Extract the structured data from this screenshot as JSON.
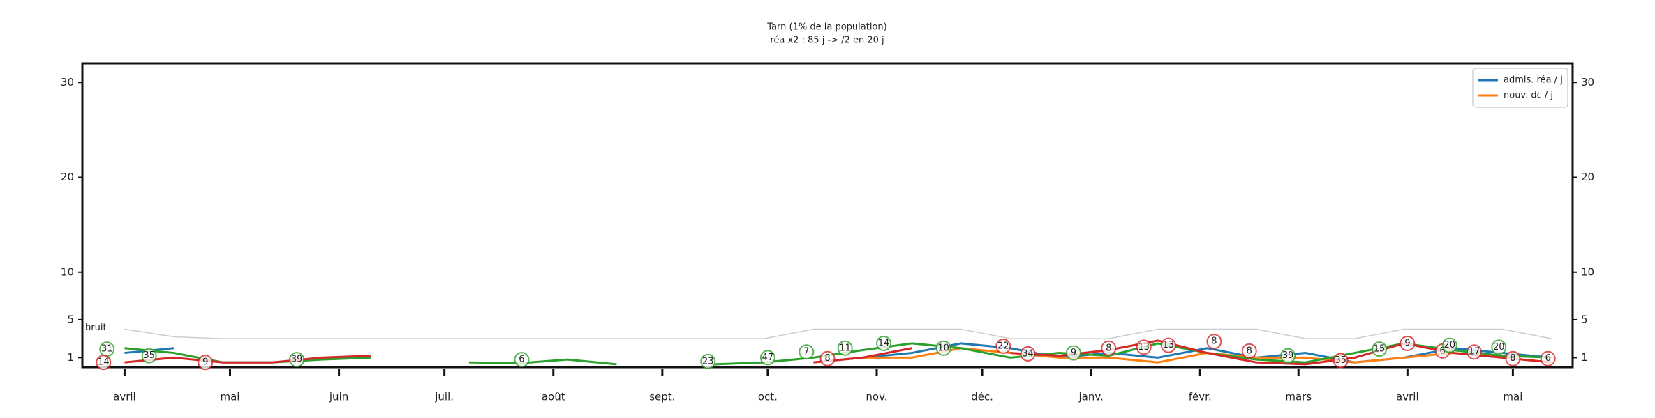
{
  "chart_data": {
    "type": "line",
    "title": "Tarn (1% de la population)",
    "subtitle": "réa x2 : 85 j -> /2 en 20 j",
    "x": [
      0,
      14,
      28,
      42,
      56,
      70,
      84,
      98,
      112,
      126,
      140,
      154,
      168,
      182,
      196,
      210,
      224,
      238,
      252,
      266,
      280,
      294,
      308,
      322,
      336,
      350,
      364,
      378,
      392,
      406
    ],
    "xlim": [
      -12,
      412
    ],
    "xticks": [
      {
        "value": 0,
        "label": "avril"
      },
      {
        "value": 30,
        "label": "mai"
      },
      {
        "value": 61,
        "label": "juin"
      },
      {
        "value": 91,
        "label": "juil."
      },
      {
        "value": 122,
        "label": "août"
      },
      {
        "value": 153,
        "label": "sept."
      },
      {
        "value": 183,
        "label": "oct."
      },
      {
        "value": 214,
        "label": "nov."
      },
      {
        "value": 244,
        "label": "déc."
      },
      {
        "value": 275,
        "label": "janv."
      },
      {
        "value": 306,
        "label": "févr."
      },
      {
        "value": 334,
        "label": "mars"
      },
      {
        "value": 365,
        "label": "avril"
      },
      {
        "value": 395,
        "label": "mai"
      }
    ],
    "ylim": [
      0,
      32
    ],
    "yticks": [
      1,
      5,
      10,
      20,
      30
    ],
    "right_axis": true,
    "legend": "upper right",
    "series": [
      {
        "name": "admis. réa / j",
        "color": "#1f77b4",
        "values": [
          1.5,
          2,
          null,
          null,
          null,
          null,
          null,
          null,
          null,
          null,
          null,
          null,
          null,
          null,
          0.5,
          1,
          1.5,
          2.5,
          2,
          1,
          1.5,
          1,
          2,
          1,
          1.5,
          0.5,
          1,
          2,
          1.5,
          1
        ]
      },
      {
        "name": "nouv. dc / j",
        "color": "#ff7f0e",
        "values": [
          0.5,
          1,
          null,
          null,
          null,
          null,
          null,
          null,
          null,
          null,
          null,
          null,
          null,
          null,
          0.5,
          1,
          1,
          2,
          1.5,
          1,
          1,
          0.5,
          1.5,
          1,
          1,
          0.5,
          1,
          1.5,
          1,
          0.5
        ]
      },
      {
        "color": "#2ca02c",
        "values": [
          2,
          1.5,
          0.5,
          0.5,
          0.8,
          1,
          null,
          0.5,
          0.4,
          0.8,
          0.3,
          null,
          0.3,
          0.5,
          1,
          1.8,
          2.5,
          2,
          1,
          1.5,
          1.2,
          2.5,
          1.5,
          0.8,
          0.5,
          1.5,
          2.5,
          1.8,
          1.2,
          1
        ]
      },
      {
        "color": "#d62728",
        "values": [
          0.5,
          1,
          0.5,
          0.5,
          1,
          1.2,
          null,
          null,
          null,
          null,
          null,
          null,
          null,
          null,
          0.5,
          1,
          2,
          null,
          1.5,
          1.2,
          1.8,
          2.8,
          1.5,
          0.5,
          0.3,
          1,
          2.5,
          1.5,
          1,
          0.5
        ]
      },
      {
        "color": "#cccccc",
        "values": [
          4,
          3.2,
          3,
          3,
          3,
          3,
          3,
          3,
          3,
          3,
          3,
          3,
          3,
          3,
          4,
          4,
          4,
          4,
          3,
          3,
          3,
          4,
          4,
          4,
          3,
          3,
          4,
          4,
          4,
          3
        ]
      }
    ],
    "noise_label": "bruit",
    "annotations": [
      {
        "x": -5,
        "y": 1.9,
        "label": 31,
        "color": "#2ca02c"
      },
      {
        "x": -6,
        "y": 0.5,
        "label": 14,
        "color": "#d62728"
      },
      {
        "x": 7,
        "y": 1.2,
        "label": 35,
        "color": "#2ca02c"
      },
      {
        "x": 23,
        "y": 0.5,
        "label": 9,
        "color": "#d62728"
      },
      {
        "x": 49,
        "y": 0.8,
        "label": 39,
        "color": "#2ca02c"
      },
      {
        "x": 113,
        "y": 0.8,
        "label": 6,
        "color": "#2ca02c"
      },
      {
        "x": 166,
        "y": 0.6,
        "label": 23,
        "color": "#2ca02c"
      },
      {
        "x": 183,
        "y": 1,
        "label": 47,
        "color": "#2ca02c"
      },
      {
        "x": 194,
        "y": 1.6,
        "label": 7,
        "color": "#2ca02c"
      },
      {
        "x": 200,
        "y": 0.9,
        "label": 8,
        "color": "#d62728"
      },
      {
        "x": 205,
        "y": 2,
        "label": 11,
        "color": "#2ca02c"
      },
      {
        "x": 216,
        "y": 2.5,
        "label": 14,
        "color": "#2ca02c"
      },
      {
        "x": 233,
        "y": 2,
        "label": 10,
        "color": "#2ca02c"
      },
      {
        "x": 250,
        "y": 2.2,
        "label": 22,
        "color": "#d62728"
      },
      {
        "x": 257,
        "y": 1.4,
        "label": 34,
        "color": "#d62728"
      },
      {
        "x": 270,
        "y": 1.5,
        "label": 9,
        "color": "#2ca02c"
      },
      {
        "x": 280,
        "y": 2,
        "label": 8,
        "color": "#d62728"
      },
      {
        "x": 290,
        "y": 2.1,
        "label": 13,
        "color": "#d62728"
      },
      {
        "x": 297,
        "y": 2.3,
        "label": 13,
        "color": "#d62728"
      },
      {
        "x": 310,
        "y": 2.7,
        "label": 8,
        "color": "#d62728"
      },
      {
        "x": 320,
        "y": 1.7,
        "label": 8,
        "color": "#d62728"
      },
      {
        "x": 331,
        "y": 1.2,
        "label": 39,
        "color": "#2ca02c"
      },
      {
        "x": 346,
        "y": 0.7,
        "label": 35,
        "color": "#d62728"
      },
      {
        "x": 357,
        "y": 1.9,
        "label": 15,
        "color": "#2ca02c"
      },
      {
        "x": 365,
        "y": 2.5,
        "label": 9,
        "color": "#d62728"
      },
      {
        "x": 375,
        "y": 1.7,
        "label": 6,
        "color": "#d62728"
      },
      {
        "x": 377,
        "y": 2.3,
        "label": 20,
        "color": "#2ca02c"
      },
      {
        "x": 384,
        "y": 1.6,
        "label": 17,
        "color": "#d62728"
      },
      {
        "x": 391,
        "y": 2.1,
        "label": 20,
        "color": "#2ca02c"
      },
      {
        "x": 395,
        "y": 0.9,
        "label": 8,
        "color": "#d62728"
      },
      {
        "x": 405,
        "y": 0.9,
        "label": 6,
        "color": "#d62728"
      }
    ]
  }
}
